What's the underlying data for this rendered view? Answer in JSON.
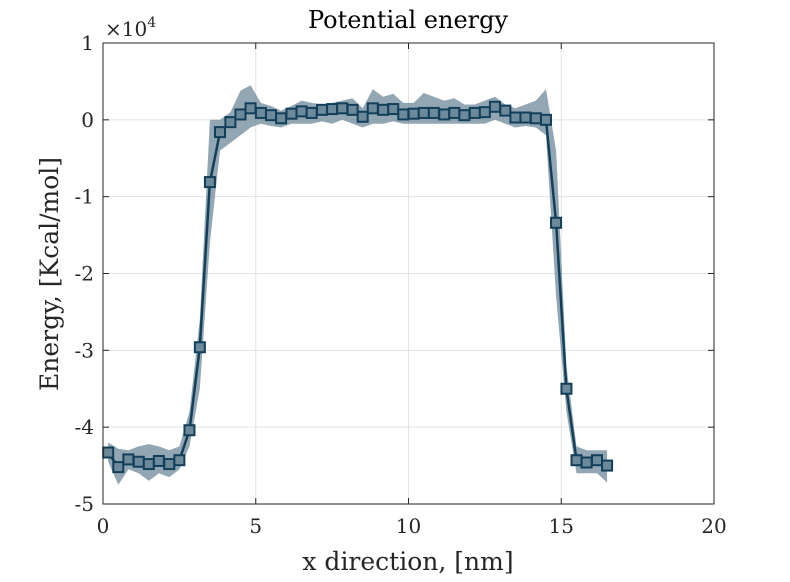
{
  "chart_data": {
    "type": "line",
    "title": "Potential energy",
    "xlabel": "x direction, [nm]",
    "ylabel": "Energy, [Kcal/mol]",
    "y_exponent": {
      "base": "×10",
      "power": "4"
    },
    "xlim": [
      0,
      20
    ],
    "ylim": [
      -5,
      1
    ],
    "xticks": [
      0,
      5,
      10,
      15,
      20
    ],
    "xtick_labels": [
      "0",
      "5",
      "10",
      "15",
      "20"
    ],
    "yticks": [
      1,
      0,
      -1,
      -2,
      -3,
      -4,
      -5
    ],
    "ytick_labels": [
      "1",
      "0",
      "-1",
      "-2",
      "-3",
      "-4",
      "-5"
    ],
    "grid": true,
    "colors": {
      "line": "#123f5a",
      "band": "#6d8a9a",
      "grid": "#e3e3e3",
      "axis": "#262626"
    },
    "series": [
      {
        "marker": "square",
        "band": "shaded",
        "x": [
          0.17,
          0.5,
          0.83,
          1.17,
          1.5,
          1.83,
          2.17,
          2.5,
          2.83,
          3.17,
          3.5,
          3.83,
          4.17,
          4.5,
          4.83,
          5.17,
          5.5,
          5.83,
          6.17,
          6.5,
          6.83,
          7.17,
          7.5,
          7.83,
          8.17,
          8.5,
          8.83,
          9.17,
          9.5,
          9.83,
          10.17,
          10.5,
          10.83,
          11.17,
          11.5,
          11.83,
          12.17,
          12.5,
          12.83,
          13.17,
          13.5,
          13.83,
          14.17,
          14.5,
          14.83,
          15.17,
          15.5,
          15.83,
          16.17,
          16.5
        ],
        "y": [
          -4.33,
          -4.52,
          -4.42,
          -4.45,
          -4.48,
          -4.44,
          -4.48,
          -4.43,
          -4.04,
          -2.96,
          -0.81,
          -0.16,
          -0.03,
          0.07,
          0.15,
          0.09,
          0.06,
          0.02,
          0.08,
          0.11,
          0.09,
          0.13,
          0.14,
          0.15,
          0.13,
          0.04,
          0.15,
          0.13,
          0.14,
          0.07,
          0.08,
          0.09,
          0.09,
          0.07,
          0.09,
          0.06,
          0.09,
          0.1,
          0.17,
          0.12,
          0.03,
          0.03,
          0.02,
          0.0,
          -1.34,
          -3.5,
          -4.43,
          -4.46,
          -4.43,
          -4.5
        ],
        "y_upper": [
          -4.2,
          -4.28,
          -4.3,
          -4.25,
          -4.22,
          -4.25,
          -4.3,
          -4.25,
          -3.8,
          -2.6,
          0.0,
          0.0,
          0.1,
          0.38,
          0.45,
          0.22,
          0.18,
          0.12,
          0.18,
          0.25,
          0.22,
          0.2,
          0.22,
          0.25,
          0.28,
          0.15,
          0.4,
          0.3,
          0.34,
          0.22,
          0.22,
          0.35,
          0.3,
          0.25,
          0.28,
          0.2,
          0.2,
          0.25,
          0.3,
          0.2,
          0.15,
          0.2,
          0.25,
          0.4,
          -0.4,
          -3.2,
          -4.25,
          -4.3,
          -4.3,
          -4.3
        ],
        "y_lower": [
          -4.45,
          -4.75,
          -4.55,
          -4.6,
          -4.7,
          -4.6,
          -4.65,
          -4.55,
          -4.25,
          -3.5,
          -1.6,
          -0.4,
          -0.3,
          -0.2,
          -0.1,
          -0.05,
          -0.08,
          -0.1,
          -0.05,
          -0.05,
          -0.05,
          -0.02,
          -0.05,
          0.0,
          -0.05,
          -0.1,
          -0.05,
          -0.05,
          -0.02,
          -0.05,
          -0.05,
          -0.05,
          -0.05,
          -0.05,
          -0.05,
          -0.05,
          -0.05,
          -0.05,
          0.0,
          -0.05,
          -0.1,
          -0.08,
          -0.1,
          -0.2,
          -2.3,
          -3.8,
          -4.6,
          -4.6,
          -4.6,
          -4.72
        ]
      }
    ]
  }
}
